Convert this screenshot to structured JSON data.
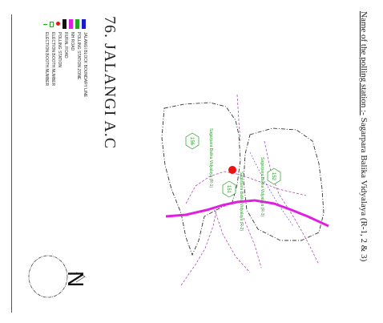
{
  "header": {
    "name_label": "Name of the polling station :-",
    "name_value": "Sagarpara Balika Vidyalaya (R-1, 2 & 3)"
  },
  "constituency": {
    "title": "76. JALANGI A.C"
  },
  "legend": [
    {
      "label": "JALANGI BLOCK BOUNDARY LINE",
      "color": "#1a1acc"
    },
    {
      "label": "POLLING STATION ZONE",
      "color": "#22aa22"
    },
    {
      "label": "NH ROAD",
      "color": "#e020e0"
    },
    {
      "label": "RURAL ROAD",
      "color": "#111111"
    },
    {
      "label": "POLLING STATION",
      "color": "#ee1111"
    },
    {
      "label": "ELECTION BOOTH NUMBER",
      "color": "#22aa22"
    },
    {
      "label": "ELECTION BOOTH NUMBER",
      "color": "#22aa22"
    }
  ],
  "map": {
    "booths": [
      {
        "number": "156",
        "label": "Sagarpara Balika Vidyalaya (R-1)"
      },
      {
        "number": "151",
        "label": "Sagarpara Balika Vidyalaya (R-2)"
      },
      {
        "number": "152",
        "label": "Sagarpara Balika Vidyalaya (R-3)"
      }
    ],
    "colors": {
      "nh_road": "#e020e0",
      "boundary": "#333333",
      "polling_dot": "#ee1111"
    }
  },
  "compass": {
    "north": "N"
  }
}
